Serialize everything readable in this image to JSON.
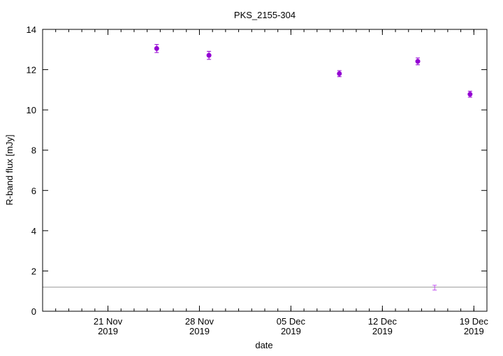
{
  "chart_data": {
    "type": "scatter",
    "title": "PKS_2155-304",
    "xlabel": "date",
    "ylabel": "R-band flux [mJy]",
    "xlim": [
      "2019-11-16",
      "2019-12-20"
    ],
    "ylim": [
      0,
      14
    ],
    "grid": false,
    "x_ticks": [
      {
        "date": "2019-11-21",
        "line1": "21 Nov",
        "line2": "2019"
      },
      {
        "date": "2019-11-28",
        "line1": "28 Nov",
        "line2": "2019"
      },
      {
        "date": "2019-12-05",
        "line1": "05 Dec",
        "line2": "2019"
      },
      {
        "date": "2019-12-12",
        "line1": "12 Dec",
        "line2": "2019"
      },
      {
        "date": "2019-12-19",
        "line1": "19 Dec",
        "line2": "2019"
      }
    ],
    "y_ticks": [
      "0",
      "2",
      "4",
      "6",
      "8",
      "10",
      "12",
      "14"
    ],
    "series": [
      {
        "color": "#9400d3",
        "marker": "filled-circle",
        "points": [
          {
            "x": "2019-11-24T17:30",
            "y": 13.05,
            "err": 0.2
          },
          {
            "x": "2019-11-28T17:30",
            "y": 12.71,
            "err": 0.2
          },
          {
            "x": "2019-12-08T17:00",
            "y": 11.8,
            "err": 0.15
          },
          {
            "x": "2019-12-14T17:00",
            "y": 12.41,
            "err": 0.17
          },
          {
            "x": "2019-12-18T17:00",
            "y": 10.78,
            "err": 0.15
          }
        ]
      },
      {
        "color": "#c050f0",
        "marker": "errorbar-only",
        "points": [
          {
            "x": "2019-12-16T00:00",
            "y": 1.17,
            "err": 0.12
          }
        ]
      }
    ],
    "reference_line": {
      "y": 1.2,
      "color": "#a0a0a0"
    }
  }
}
